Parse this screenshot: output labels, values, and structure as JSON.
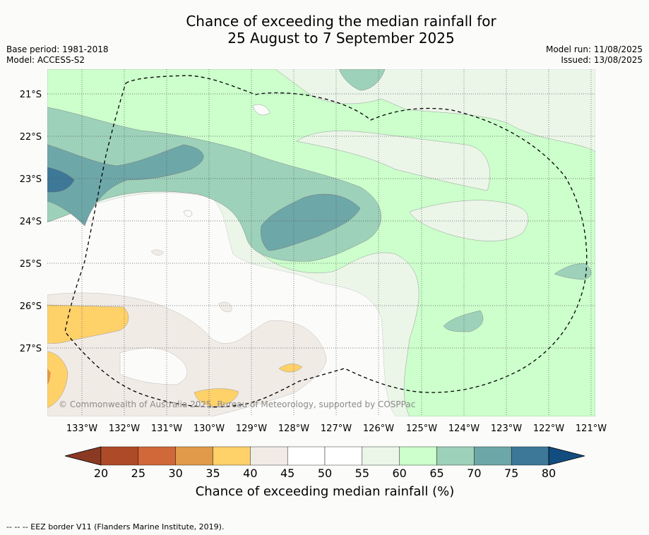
{
  "title_line1": "Chance of exceeding the median rainfall for",
  "title_line2": "25 August to 7 September 2025",
  "base_period": "Base period: 1981-2018",
  "model": "Model: ACCESS-S2",
  "model_run": "Model run: 11/08/2025",
  "issued": "Issued: 13/08/2025",
  "lat_labels": [
    "21°S",
    "22°S",
    "23°S",
    "24°S",
    "25°S",
    "26°S",
    "27°S"
  ],
  "lon_labels": [
    "133°W",
    "132°W",
    "131°W",
    "130°W",
    "129°W",
    "128°W",
    "127°W",
    "126°W",
    "125°W",
    "124°W",
    "123°W",
    "122°W",
    "121°W"
  ],
  "copyright": "© Commonwealth of Australia 2025, Bureau of Meteorology, supported by COSPPac",
  "colorbar": {
    "ticks": [
      "20",
      "25",
      "30",
      "35",
      "40",
      "45",
      "50",
      "55",
      "60",
      "65",
      "70",
      "75",
      "80"
    ],
    "colors": [
      "#ad4a28",
      "#d0683a",
      "#e09a4a",
      "#ffd169",
      "#f1ebe6",
      "#ffffff",
      "#ffffff",
      "#ebf6e9",
      "#ccffcc",
      "#9dd1ba",
      "#6ea7a8",
      "#3d7898"
    ],
    "under_color": "#8a3a22",
    "over_color": "#134c7f",
    "label": "Chance of exceeding median rainfall (%)"
  },
  "footnote": "-- -- -- EEZ border V11 (Flanders Marine Institute, 2019)."
}
